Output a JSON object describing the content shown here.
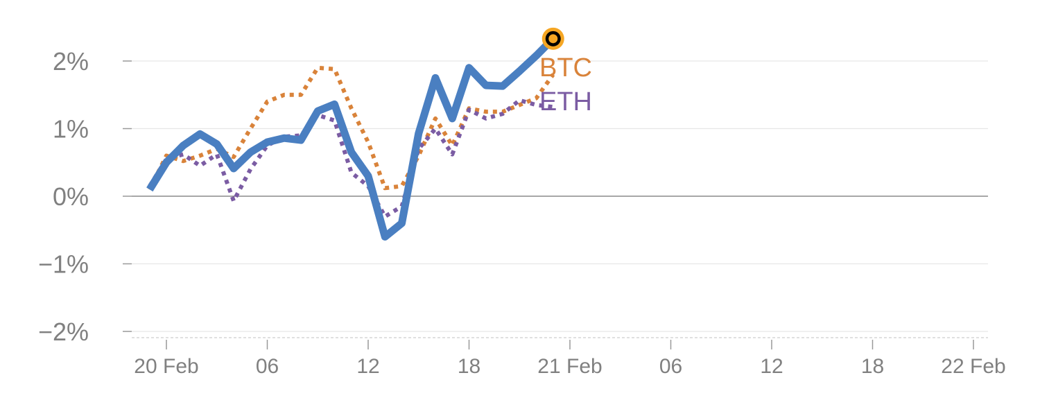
{
  "chart_data": {
    "type": "line",
    "y_axis": {
      "ticks": [
        2,
        1,
        0,
        -1,
        -2
      ],
      "tick_labels": [
        "2%",
        "1%",
        "0%",
        "−1%",
        "−2%"
      ],
      "range": [
        -2,
        2
      ]
    },
    "x_axis": {
      "ticks": [
        "20 Feb 00:00",
        "20 Feb 06:00",
        "20 Feb 12:00",
        "20 Feb 18:00",
        "21 Feb 00:00",
        "21 Feb 06:00",
        "21 Feb 12:00",
        "21 Feb 18:00",
        "22 Feb 00:00"
      ],
      "tick_labels": [
        "20 Feb",
        "06",
        "12",
        "18",
        "21 Feb",
        "06",
        "12",
        "18",
        "22 Feb"
      ],
      "range": [
        "19 Feb 23:00",
        "22 Feb 01:00"
      ]
    },
    "grid": true,
    "series": [
      {
        "name": "",
        "color": "#4a7fc1",
        "style": "solid",
        "x": [
          "19 Feb 23:00",
          "20 Feb 00:00",
          "20 Feb 01:00",
          "20 Feb 02:00",
          "20 Feb 03:00",
          "20 Feb 04:00",
          "20 Feb 05:00",
          "20 Feb 06:00",
          "20 Feb 07:00",
          "20 Feb 08:00",
          "20 Feb 09:00",
          "20 Feb 10:00",
          "20 Feb 11:00",
          "20 Feb 12:00",
          "20 Feb 13:00",
          "20 Feb 14:00",
          "20 Feb 15:00",
          "20 Feb 16:00",
          "20 Feb 17:00",
          "20 Feb 18:00",
          "20 Feb 19:00",
          "20 Feb 20:00",
          "20 Feb 21:00",
          "20 Feb 22:00",
          "20 Feb 23:00"
        ],
        "values": [
          0.1,
          0.5,
          0.75,
          0.92,
          0.77,
          0.41,
          0.65,
          0.8,
          0.86,
          0.83,
          1.26,
          1.36,
          0.65,
          0.3,
          -0.6,
          -0.4,
          0.93,
          1.75,
          1.15,
          1.9,
          1.64,
          1.63,
          1.85,
          2.08,
          2.33
        ]
      },
      {
        "name": "BTC",
        "color": "#d9833a",
        "style": "dotted",
        "x": [
          "19 Feb 23:00",
          "20 Feb 00:00",
          "20 Feb 01:00",
          "20 Feb 02:00",
          "20 Feb 03:00",
          "20 Feb 04:00",
          "20 Feb 05:00",
          "20 Feb 06:00",
          "20 Feb 07:00",
          "20 Feb 08:00",
          "20 Feb 09:00",
          "20 Feb 10:00",
          "20 Feb 11:00",
          "20 Feb 12:00",
          "20 Feb 13:00",
          "20 Feb 14:00",
          "20 Feb 15:00",
          "20 Feb 16:00",
          "20 Feb 17:00",
          "20 Feb 18:00",
          "20 Feb 19:00",
          "20 Feb 20:00",
          "20 Feb 21:00",
          "20 Feb 22:00",
          "20 Feb 23:00"
        ],
        "values": [
          0.1,
          0.6,
          0.52,
          0.6,
          0.7,
          0.58,
          1.0,
          1.4,
          1.5,
          1.5,
          1.9,
          1.88,
          1.3,
          0.8,
          0.12,
          0.15,
          0.6,
          1.15,
          0.75,
          1.3,
          1.25,
          1.25,
          1.35,
          1.45,
          1.8
        ]
      },
      {
        "name": "ETH",
        "color": "#7b5ca3",
        "style": "dotted",
        "x": [
          "19 Feb 23:00",
          "20 Feb 00:00",
          "20 Feb 01:00",
          "20 Feb 02:00",
          "20 Feb 03:00",
          "20 Feb 04:00",
          "20 Feb 05:00",
          "20 Feb 06:00",
          "20 Feb 07:00",
          "20 Feb 08:00",
          "20 Feb 09:00",
          "20 Feb 10:00",
          "20 Feb 11:00",
          "20 Feb 12:00",
          "20 Feb 13:00",
          "20 Feb 14:00",
          "20 Feb 15:00",
          "20 Feb 16:00",
          "20 Feb 17:00",
          "20 Feb 18:00",
          "20 Feb 19:00",
          "20 Feb 20:00",
          "20 Feb 21:00",
          "20 Feb 22:00",
          "20 Feb 23:00"
        ],
        "values": [
          0.15,
          0.55,
          0.62,
          0.45,
          0.62,
          -0.07,
          0.4,
          0.75,
          0.88,
          0.9,
          1.2,
          1.12,
          0.35,
          0.15,
          -0.3,
          -0.15,
          0.7,
          1.0,
          0.62,
          1.28,
          1.15,
          1.22,
          1.42,
          1.35,
          1.32
        ]
      }
    ],
    "end_marker": {
      "x": "20 Feb 23:00",
      "y": 2.33,
      "ring_color": "#f5a623",
      "fill_color": "#000000"
    },
    "styles": {
      "tick_label_color": "#808080",
      "grid_color": "#e6e6e6",
      "zero_line_color": "#8a8a8a"
    }
  }
}
